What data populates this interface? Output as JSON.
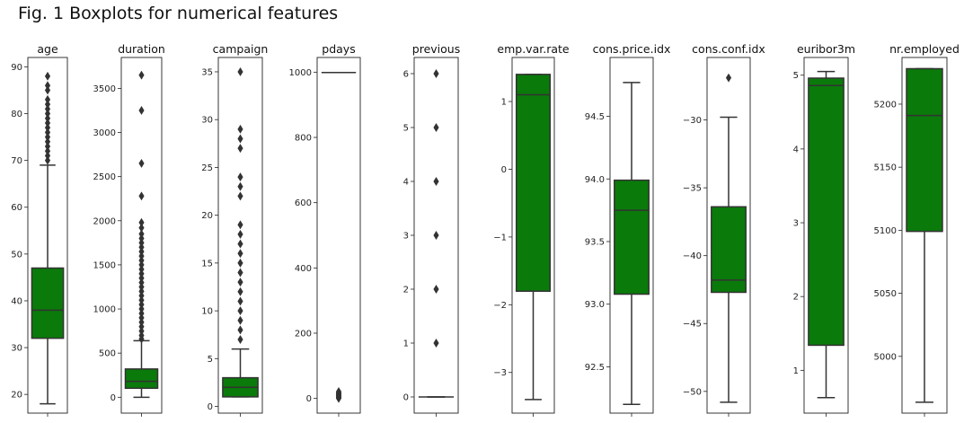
{
  "figure": {
    "title": "Fig. 1 Boxplots for numerical features"
  },
  "colors": {
    "box_fill": "#0a7a0a",
    "line": "#333333",
    "frame": "#222222"
  },
  "chart_data": [
    {
      "type": "boxplot",
      "title": "age",
      "ylim": [
        16,
        92
      ],
      "yticks": [
        20,
        30,
        40,
        50,
        60,
        70,
        80,
        90
      ],
      "tick_labels": [
        "20",
        "30",
        "40",
        "50",
        "60",
        "70",
        "80",
        "90"
      ],
      "whisker_low": 18,
      "q1": 32,
      "median": 38,
      "q3": 47,
      "whisker_high": 69,
      "outliers": [
        70,
        71,
        72,
        73,
        74,
        75,
        76,
        77,
        78,
        79,
        80,
        81,
        82,
        83,
        85,
        86,
        88
      ]
    },
    {
      "type": "boxplot",
      "title": "duration",
      "ylim": [
        -180,
        3850
      ],
      "yticks": [
        0,
        500,
        1000,
        1500,
        2000,
        2500,
        3000,
        3500
      ],
      "tick_labels": [
        "0",
        "500",
        "1000",
        "1500",
        "2000",
        "2500",
        "3000",
        "3500"
      ],
      "whisker_low": 0,
      "q1": 102,
      "median": 180,
      "q3": 320,
      "whisker_high": 640,
      "outliers": [
        660,
        700,
        750,
        800,
        850,
        900,
        950,
        1000,
        1050,
        1100,
        1150,
        1200,
        1250,
        1300,
        1350,
        1400,
        1450,
        1500,
        1550,
        1600,
        1650,
        1700,
        1750,
        1800,
        1850,
        1920,
        1980,
        2280,
        2650,
        3250,
        3650
      ]
    },
    {
      "type": "boxplot",
      "title": "campaign",
      "ylim": [
        -0.7,
        36.5
      ],
      "yticks": [
        0,
        5,
        10,
        15,
        20,
        25,
        30,
        35
      ],
      "tick_labels": [
        "0",
        "5",
        "10",
        "15",
        "20",
        "25",
        "30",
        "35"
      ],
      "whisker_low": 1,
      "q1": 1,
      "median": 2,
      "q3": 3,
      "whisker_high": 6,
      "outliers": [
        7,
        8,
        9,
        10,
        11,
        12,
        13,
        14,
        15,
        16,
        17,
        18,
        19,
        22,
        23,
        24,
        27,
        28,
        29,
        35
      ]
    },
    {
      "type": "boxplot",
      "title": "pdays",
      "ylim": [
        -45,
        1045
      ],
      "yticks": [
        0,
        200,
        400,
        600,
        800,
        1000
      ],
      "tick_labels": [
        "0",
        "200",
        "400",
        "600",
        "800",
        "1000"
      ],
      "whisker_low": 999,
      "q1": 999,
      "median": 999,
      "q3": 999,
      "whisker_high": 999,
      "outliers": [
        0,
        2,
        4,
        6,
        8,
        10,
        12,
        14,
        16,
        18,
        21
      ]
    },
    {
      "type": "boxplot",
      "title": "previous",
      "ylim": [
        -0.3,
        6.3
      ],
      "yticks": [
        0,
        1,
        2,
        3,
        4,
        5,
        6
      ],
      "tick_labels": [
        "0",
        "1",
        "2",
        "3",
        "4",
        "5",
        "6"
      ],
      "whisker_low": 0,
      "q1": 0,
      "median": 0,
      "q3": 0,
      "whisker_high": 0,
      "outliers": [
        1,
        2,
        3,
        4,
        5,
        6
      ]
    },
    {
      "type": "boxplot",
      "title": "emp.var.rate",
      "ylim": [
        -3.6,
        1.65
      ],
      "yticks": [
        -3,
        -2,
        -1,
        0,
        1
      ],
      "tick_labels": [
        "−3",
        "−2",
        "−1",
        "0",
        "1"
      ],
      "whisker_low": -3.4,
      "q1": -1.8,
      "median": 1.1,
      "q3": 1.4,
      "whisker_high": 1.4,
      "outliers": []
    },
    {
      "type": "boxplot",
      "title": "cons.price.idx",
      "ylim": [
        92.13,
        94.97
      ],
      "yticks": [
        92.5,
        93.0,
        93.5,
        94.0,
        94.5
      ],
      "tick_labels": [
        "92.5",
        "93.0",
        "93.5",
        "94.0",
        "94.5"
      ],
      "whisker_low": 92.2,
      "q1": 93.08,
      "median": 93.75,
      "q3": 93.99,
      "whisker_high": 94.77,
      "outliers": []
    },
    {
      "type": "boxplot",
      "title": "cons.conf.idx",
      "ylim": [
        -51.6,
        -25.4
      ],
      "yticks": [
        -50,
        -45,
        -40,
        -35,
        -30
      ],
      "tick_labels": [
        "−50",
        "−45",
        "−40",
        "−35",
        "−30"
      ],
      "whisker_low": -50.8,
      "q1": -42.7,
      "median": -41.8,
      "q3": -36.4,
      "whisker_high": -29.8,
      "outliers": [
        -26.9
      ]
    },
    {
      "type": "boxplot",
      "title": "euribor3m",
      "ylim": [
        0.42,
        5.24
      ],
      "yticks": [
        1,
        2,
        3,
        4,
        5
      ],
      "tick_labels": [
        "1",
        "2",
        "3",
        "4",
        "5"
      ],
      "whisker_low": 0.63,
      "q1": 1.34,
      "median": 4.86,
      "q3": 4.96,
      "whisker_high": 5.05,
      "outliers": []
    },
    {
      "type": "boxplot",
      "title": "nr.employed",
      "ylim": [
        4955,
        5237
      ],
      "yticks": [
        5000,
        5050,
        5100,
        5150,
        5200
      ],
      "tick_labels": [
        "5000",
        "5050",
        "5100",
        "5150",
        "5200"
      ],
      "whisker_low": 4963.6,
      "q1": 5099.1,
      "median": 5191,
      "q3": 5228.1,
      "whisker_high": 5228.1,
      "outliers": []
    }
  ]
}
